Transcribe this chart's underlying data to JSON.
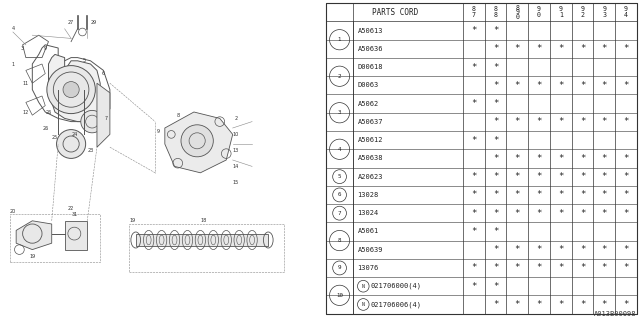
{
  "title": "A013B00098",
  "bg_color": "#ffffff",
  "table": {
    "header_label": "PARTS CORD",
    "year_cols": [
      "8\n7",
      "8\n8",
      "8\n9\n0",
      "9\n0",
      "9\n1",
      "9\n2",
      "9\n3",
      "9\n4"
    ],
    "rows": [
      {
        "num": "1",
        "circle": true,
        "parts": [
          {
            "code": "A50613",
            "marks": [
              1,
              1,
              0,
              0,
              0,
              0,
              0,
              0
            ]
          },
          {
            "code": "A50636",
            "marks": [
              0,
              1,
              1,
              1,
              1,
              1,
              1,
              1
            ]
          }
        ]
      },
      {
        "num": "2",
        "circle": true,
        "parts": [
          {
            "code": "D00618",
            "marks": [
              1,
              1,
              0,
              0,
              0,
              0,
              0,
              0
            ]
          },
          {
            "code": "D0063",
            "marks": [
              0,
              1,
              1,
              1,
              1,
              1,
              1,
              1
            ]
          }
        ]
      },
      {
        "num": "3",
        "circle": true,
        "parts": [
          {
            "code": "A5062",
            "marks": [
              1,
              1,
              0,
              0,
              0,
              0,
              0,
              0
            ]
          },
          {
            "code": "A50637",
            "marks": [
              0,
              1,
              1,
              1,
              1,
              1,
              1,
              1
            ]
          }
        ]
      },
      {
        "num": "4",
        "circle": true,
        "parts": [
          {
            "code": "A50612",
            "marks": [
              1,
              1,
              0,
              0,
              0,
              0,
              0,
              0
            ]
          },
          {
            "code": "A50638",
            "marks": [
              0,
              1,
              1,
              1,
              1,
              1,
              1,
              1
            ]
          }
        ]
      },
      {
        "num": "5",
        "circle": true,
        "parts": [
          {
            "code": "A20623",
            "marks": [
              1,
              1,
              1,
              1,
              1,
              1,
              1,
              1
            ]
          }
        ]
      },
      {
        "num": "6",
        "circle": true,
        "parts": [
          {
            "code": "13028",
            "marks": [
              1,
              1,
              1,
              1,
              1,
              1,
              1,
              1
            ]
          }
        ]
      },
      {
        "num": "7",
        "circle": true,
        "parts": [
          {
            "code": "13024",
            "marks": [
              1,
              1,
              1,
              1,
              1,
              1,
              1,
              1
            ]
          }
        ]
      },
      {
        "num": "8",
        "circle": true,
        "parts": [
          {
            "code": "A5061",
            "marks": [
              1,
              1,
              0,
              0,
              0,
              0,
              0,
              0
            ]
          },
          {
            "code": "A50639",
            "marks": [
              0,
              1,
              1,
              1,
              1,
              1,
              1,
              1
            ]
          }
        ]
      },
      {
        "num": "9",
        "circle": true,
        "parts": [
          {
            "code": "13076",
            "marks": [
              1,
              1,
              1,
              1,
              1,
              1,
              1,
              1
            ]
          }
        ]
      },
      {
        "num": "10",
        "circle": true,
        "n_circle": true,
        "parts": [
          {
            "code": "021706000(4)",
            "marks": [
              1,
              1,
              0,
              0,
              0,
              0,
              0,
              0
            ]
          },
          {
            "code": "021706006(4)",
            "marks": [
              0,
              1,
              1,
              1,
              1,
              1,
              1,
              1
            ]
          }
        ]
      }
    ]
  }
}
